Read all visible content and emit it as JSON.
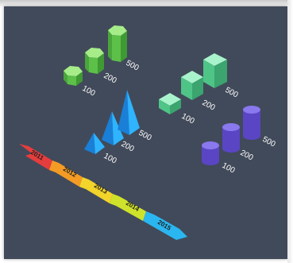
{
  "hex_prisms": {
    "labels": [
      "100",
      "200",
      "500"
    ],
    "color": "#6fcf5f"
  },
  "cubes": {
    "labels": [
      "100",
      "200",
      "500"
    ],
    "color": "#6fe0a3"
  },
  "pyramids": {
    "labels": [
      "100",
      "200",
      "500"
    ],
    "color": "#1a97f0"
  },
  "cylinders": {
    "labels": [
      "100",
      "200",
      "500"
    ],
    "color": "#6a56d6"
  },
  "timeline": {
    "years": [
      "2011",
      "2012",
      "2013",
      "2014",
      "2015"
    ],
    "colors": [
      "#e53d3d",
      "#f39b24",
      "#f2d42a",
      "#cfe22b",
      "#2ab6f0"
    ]
  }
}
